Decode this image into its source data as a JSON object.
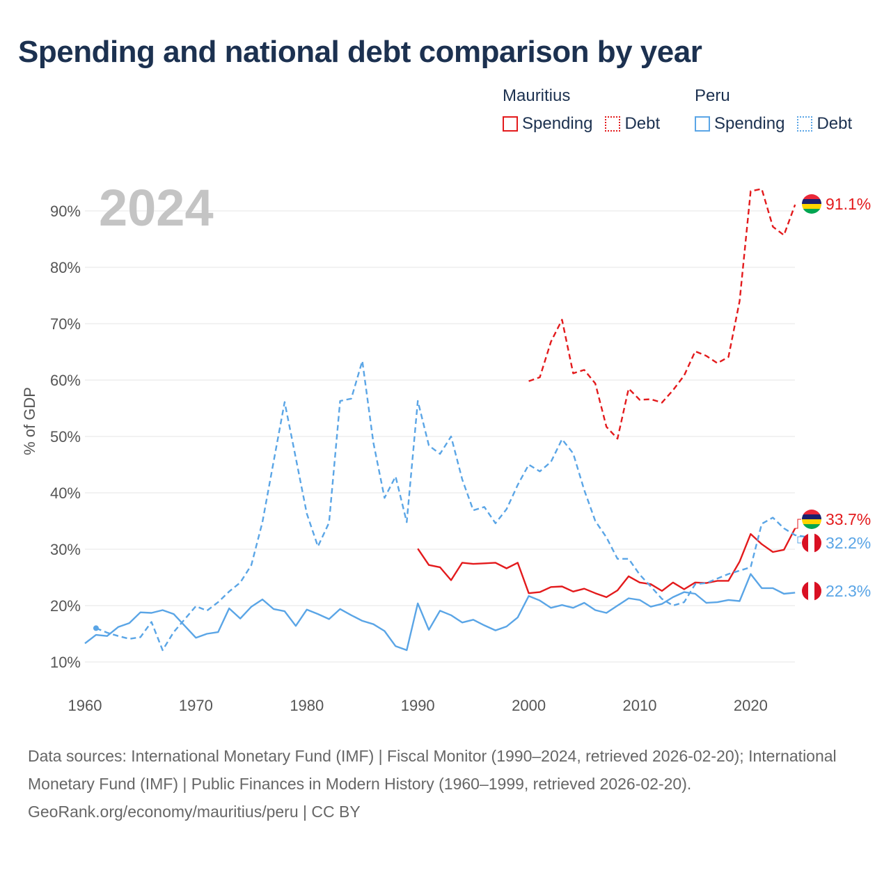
{
  "title": "Spending and national debt comparison by year",
  "legend": {
    "groups": [
      {
        "country": "Mauritius",
        "color": "#e31a1c",
        "items": [
          {
            "label": "Spending",
            "style": "solid"
          },
          {
            "label": "Debt",
            "style": "dotted"
          }
        ]
      },
      {
        "country": "Peru",
        "color": "#5aa5e6",
        "items": [
          {
            "label": "Spending",
            "style": "solid"
          },
          {
            "label": "Debt",
            "style": "dotted"
          }
        ]
      }
    ]
  },
  "chart_data": {
    "type": "line",
    "title": "Spending and national debt comparison by year",
    "current_year": "2024",
    "ylabel": "% of GDP",
    "xlabel": "",
    "xlim": [
      1960,
      2025
    ],
    "ylim": [
      5,
      97
    ],
    "x_ticks": [
      1960,
      1970,
      1980,
      1990,
      2000,
      2010,
      2020
    ],
    "y_ticks": [
      10,
      20,
      30,
      40,
      50,
      60,
      70,
      80,
      90
    ],
    "y_tick_labels": [
      "10%",
      "20%",
      "30%",
      "40%",
      "50%",
      "60%",
      "70%",
      "80%",
      "90%"
    ],
    "grid": true,
    "series": [
      {
        "name": "Mauritius Spending",
        "country": "Mauritius",
        "kind": "spending",
        "color": "#e31a1c",
        "dash": "none",
        "start": 1990,
        "values": [
          30.1,
          27.2,
          26.8,
          24.5,
          27.6,
          27.4,
          27.5,
          27.6,
          26.6,
          27.6,
          22.2,
          22.4,
          23.3,
          23.4,
          22.5,
          23.0,
          22.2,
          21.5,
          22.7,
          25.2,
          24.1,
          23.8,
          22.6,
          24.1,
          22.9,
          24.1,
          24.0,
          24.4,
          24.4,
          27.8,
          32.7,
          30.9,
          29.5,
          29.9,
          33.7
        ],
        "end_label": "33.7%"
      },
      {
        "name": "Mauritius Debt",
        "country": "Mauritius",
        "kind": "debt",
        "color": "#e31a1c",
        "dash": "dashed",
        "start": 2000,
        "values": [
          59.8,
          60.5,
          66.8,
          70.7,
          61.2,
          61.8,
          59.4,
          51.7,
          49.6,
          58.5,
          56.5,
          56.6,
          56.0,
          58.2,
          60.8,
          65.1,
          64.3,
          63.0,
          64.1,
          74.0,
          93.5,
          93.9,
          87.2,
          85.7,
          91.1
        ],
        "end_label": "91.1%"
      },
      {
        "name": "Peru Spending",
        "country": "Peru",
        "kind": "spending",
        "color": "#5aa5e6",
        "dash": "none",
        "start": 1960,
        "values": [
          13.3,
          14.8,
          14.6,
          16.2,
          16.9,
          18.8,
          18.7,
          19.2,
          18.5,
          16.4,
          14.3,
          15.0,
          15.3,
          19.5,
          17.7,
          19.8,
          21.1,
          19.4,
          19.0,
          16.4,
          19.3,
          18.5,
          17.6,
          19.4,
          18.3,
          17.3,
          16.7,
          15.5,
          12.8,
          12.1,
          20.4,
          15.7,
          19.1,
          18.3,
          17.0,
          17.5,
          16.5,
          15.6,
          16.3,
          17.9,
          21.7,
          20.9,
          19.6,
          20.1,
          19.6,
          20.5,
          19.2,
          18.7,
          20.0,
          21.3,
          21.0,
          19.8,
          20.3,
          21.5,
          22.4,
          22.1,
          20.5,
          20.6,
          21.0,
          20.8,
          25.6,
          23.1,
          23.1,
          22.1,
          22.3
        ],
        "end_label": "22.3%"
      },
      {
        "name": "Peru Debt",
        "country": "Peru",
        "kind": "debt",
        "color": "#5aa5e6",
        "dash": "dashed",
        "start": 1961,
        "values": [
          16.0,
          15.2,
          14.6,
          14.1,
          14.4,
          17.1,
          12.1,
          15.3,
          17.6,
          19.9,
          19.1,
          20.6,
          22.5,
          24.1,
          27.2,
          34.8,
          45.5,
          56.1,
          46.2,
          36.3,
          30.5,
          34.7,
          56.3,
          56.7,
          63.4,
          48.9,
          39.1,
          42.9,
          34.8,
          56.3,
          48.4,
          46.9,
          50.0,
          42.4,
          36.9,
          37.5,
          34.6,
          37.1,
          41.4,
          45.0,
          43.8,
          45.5,
          49.5,
          47.0,
          40.5,
          35.0,
          32.1,
          28.3,
          28.3,
          25.5,
          23.4,
          21.2,
          20.0,
          20.6,
          23.8,
          24.0,
          24.8,
          25.6,
          26.2,
          26.8,
          34.5,
          35.6,
          33.7,
          32.5,
          32.2
        ],
        "start_marker": true,
        "end_label": "32.2%"
      }
    ]
  },
  "footer": {
    "sources": "Data sources: International Monetary Fund (IMF) | Fiscal Monitor (1990–2024, retrieved 2026-02-20); International Monetary Fund (IMF) | Public Finances in Modern History (1960–1999, retrieved 2026-02-20).",
    "credit": "GeoRank.org/economy/mauritius/peru | CC BY"
  }
}
